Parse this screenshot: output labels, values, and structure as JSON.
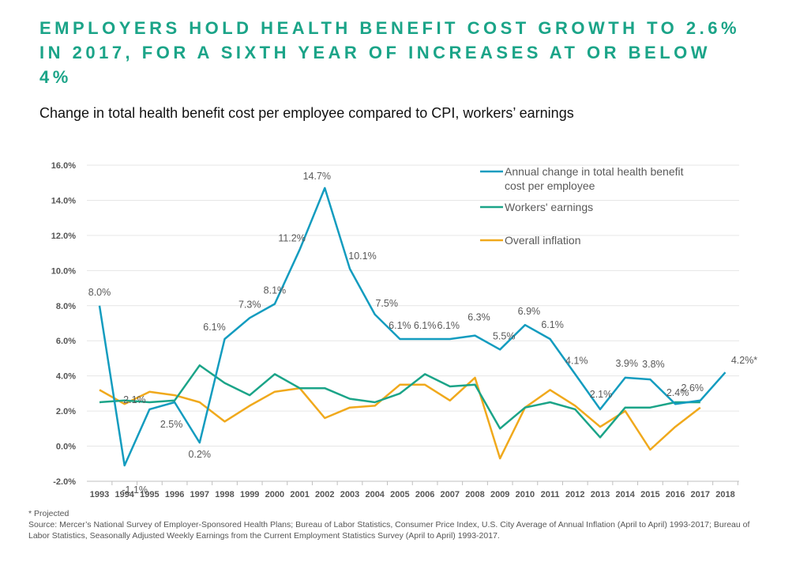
{
  "title": "EMPLOYERS HOLD HEALTH BENEFIT COST GROWTH TO 2.6% IN 2017, FOR A SIXTH YEAR OF INCREASES AT OR BELOW 4%",
  "subtitle": "Change in total health benefit cost per employee compared to CPI, workers’ earnings",
  "footnote": "* Projected",
  "source": "Source: Mercer’s National Survey of Employer-Sponsored Health Plans; Bureau of Labor Statistics, Consumer Price Index, U.S. City Average of Annual Inflation (April to April) 1993-2017; Bureau of Labor Statistics, Seasonally Adjusted Weekly Earnings from the Current Employment Statistics Survey (April to April) 1993-2017.",
  "colors": {
    "health": "#139CBF",
    "earnings": "#1BA488",
    "inflation": "#F0A91C",
    "title": "#1BA488"
  },
  "chart_data": {
    "type": "line",
    "x": [
      "1993",
      "1994",
      "1995",
      "1996",
      "1997",
      "1998",
      "1999",
      "2000",
      "2001",
      "2002",
      "2003",
      "2004",
      "2005",
      "2006",
      "2007",
      "2008",
      "2009",
      "2010",
      "2011",
      "2012",
      "2013",
      "2014",
      "2015",
      "2016",
      "2017",
      "2018"
    ],
    "ylim": [
      -2.0,
      16.0
    ],
    "yticks": [
      "-2.0%",
      "0.0%",
      "2.0%",
      "4.0%",
      "6.0%",
      "8.0%",
      "10.0%",
      "12.0%",
      "14.0%",
      "16.0%"
    ],
    "grid": true,
    "legend_position": "top-right",
    "series": [
      {
        "name": "Annual change in total health benefit cost per employee",
        "color": "#139CBF",
        "values": [
          8.0,
          -1.1,
          2.1,
          2.5,
          0.2,
          6.1,
          7.3,
          8.1,
          11.2,
          14.7,
          10.1,
          7.5,
          6.1,
          6.1,
          6.1,
          6.3,
          5.5,
          6.9,
          6.1,
          4.1,
          2.1,
          3.9,
          3.8,
          2.4,
          2.6,
          4.2
        ],
        "labels": [
          "8.0%",
          "-1.1%",
          "2.1%",
          "2.5%",
          "0.2%",
          "6.1%",
          "7.3%",
          "8.1%",
          "11.2%",
          "14.7%",
          "10.1%",
          "7.5%",
          "6.1%",
          "6.1%",
          "6.1%",
          "6.3%",
          "5.5%",
          "6.9%",
          "6.1%",
          "4.1%",
          "2.1%",
          "3.9%",
          "3.8%",
          "2.4%",
          "2.6%",
          "4.2%*"
        ]
      },
      {
        "name": "Workers' earnings",
        "color": "#1BA488",
        "values": [
          2.5,
          2.6,
          2.5,
          2.6,
          4.6,
          3.6,
          2.9,
          4.1,
          3.3,
          3.3,
          2.7,
          2.5,
          3.0,
          4.1,
          3.4,
          3.5,
          1.0,
          2.2,
          2.5,
          2.1,
          0.5,
          2.2,
          2.2,
          2.5,
          2.5,
          null
        ]
      },
      {
        "name": "Overall inflation",
        "color": "#F0A91C",
        "values": [
          3.2,
          2.4,
          3.1,
          2.9,
          2.5,
          1.4,
          2.3,
          3.1,
          3.3,
          1.6,
          2.2,
          2.3,
          3.5,
          3.5,
          2.6,
          3.9,
          -0.7,
          2.2,
          3.2,
          2.3,
          1.1,
          2.0,
          -0.2,
          1.1,
          2.2,
          null
        ]
      }
    ]
  }
}
